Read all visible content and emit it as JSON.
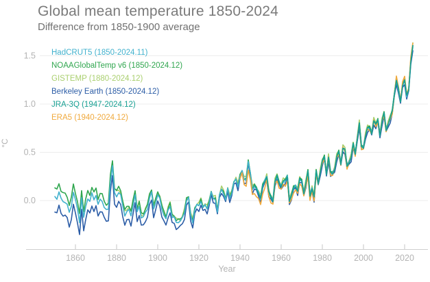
{
  "header": {
    "title": "Global mean temperature 1850-2024",
    "subtitle": "Difference from 1850-1900 average"
  },
  "axes": {
    "ylabel": "°C",
    "xlabel": "Year"
  },
  "style_colors": {
    "gridline": "#ececec",
    "axis_line": "#cfcfcf",
    "tick_mark": "#c4c4c4",
    "tick_label": "#b3b3b3"
  },
  "chart_data": {
    "type": "line",
    "title": "Global mean temperature 1850-2024",
    "subtitle": "Difference from 1850-1900 average",
    "xlabel": "Year",
    "ylabel": "°C",
    "x_range": [
      1850,
      2024
    ],
    "ylim": [
      -0.45,
      1.75
    ],
    "y_ticks": [
      0.0,
      0.5,
      1.0,
      1.5
    ],
    "y_tick_labels": [
      "0.0",
      "0.5",
      "1.0",
      "1.5"
    ],
    "x_ticks": [
      1860,
      1880,
      1900,
      1920,
      1940,
      1960,
      1980,
      2000,
      2020
    ],
    "grid": "horizontal-only",
    "legend_position": "top-left",
    "years_start": 1850,
    "years_end": 2024,
    "base_values": [
      0.05,
      0.02,
      0.08,
      0.02,
      0.0,
      -0.02,
      -0.05,
      -0.12,
      -0.05,
      0.08,
      0.0,
      -0.08,
      -0.22,
      0.02,
      -0.18,
      -0.05,
      0.02,
      -0.02,
      0.08,
      0.02,
      0.05,
      -0.05,
      0.02,
      0.0,
      -0.08,
      -0.1,
      -0.08,
      0.2,
      0.35,
      0.08,
      0.05,
      0.08,
      0.05,
      -0.05,
      -0.15,
      -0.12,
      -0.1,
      -0.15,
      -0.05,
      0.05,
      -0.12,
      -0.05,
      -0.18,
      -0.18,
      -0.12,
      -0.08,
      0.02,
      0.08,
      -0.08,
      -0.02,
      0.05,
      0.02,
      -0.08,
      -0.15,
      -0.2,
      -0.1,
      -0.05,
      -0.18,
      -0.18,
      -0.22,
      -0.22,
      -0.22,
      -0.18,
      -0.12,
      0.0,
      0.02,
      -0.15,
      -0.22,
      -0.1,
      -0.05,
      -0.05,
      0.0,
      -0.08,
      -0.05,
      -0.08,
      -0.02,
      0.08,
      0.02,
      0.02,
      -0.12,
      0.05,
      0.12,
      0.08,
      0.0,
      0.12,
      0.03,
      0.08,
      0.18,
      0.22,
      0.15,
      0.25,
      0.3,
      0.22,
      0.22,
      0.4,
      0.28,
      0.12,
      0.15,
      0.12,
      0.08,
      0.02,
      0.15,
      0.2,
      0.25,
      0.08,
      0.03,
      0.0,
      0.2,
      0.25,
      0.18,
      0.15,
      0.2,
      0.2,
      0.25,
      0.0,
      0.05,
      0.13,
      0.15,
      0.1,
      0.22,
      0.2,
      0.08,
      0.18,
      0.3,
      0.05,
      0.13,
      0.03,
      0.3,
      0.18,
      0.3,
      0.4,
      0.45,
      0.28,
      0.45,
      0.28,
      0.28,
      0.33,
      0.45,
      0.5,
      0.38,
      0.55,
      0.52,
      0.35,
      0.4,
      0.45,
      0.58,
      0.48,
      0.65,
      0.8,
      0.55,
      0.55,
      0.68,
      0.75,
      0.75,
      0.7,
      0.83,
      0.78,
      0.83,
      0.68,
      0.82,
      0.9,
      0.73,
      0.8,
      0.85,
      0.92,
      1.1,
      1.25,
      1.15,
      1.02,
      1.2,
      1.25,
      1.08,
      1.15,
      1.45,
      1.6
    ],
    "series": [
      {
        "name": "hadcrut5",
        "label": "HadCRUT5 (1850-2024.11)",
        "color": "#41b1cd",
        "start_year": 1850,
        "end_year": 2024,
        "offset": 0.0,
        "early_offset": 0.0,
        "early_until": 1920,
        "wiggle_amp": 0.012,
        "wiggle_phase": 0.5,
        "z": 4,
        "adjustments": []
      },
      {
        "name": "noaa",
        "label": "NOAAGlobalTemp v6 (1850-2024.12)",
        "color": "#2fa64e",
        "start_year": 1850,
        "end_year": 2024,
        "offset": 0.01,
        "early_offset": 0.08,
        "early_until": 1920,
        "wiggle_amp": 0.013,
        "wiggle_phase": 2.1,
        "z": 3,
        "adjustments": []
      },
      {
        "name": "gistemp",
        "label": "GISTEMP (1880-2024.12)",
        "color": "#a9cf6e",
        "start_year": 1880,
        "end_year": 2024,
        "offset": 0.02,
        "early_offset": 0.03,
        "early_until": 1920,
        "wiggle_amp": 0.015,
        "wiggle_phase": 4.2,
        "z": 2,
        "adjustments": []
      },
      {
        "name": "berkeley",
        "label": "Berkeley Earth (1850-2024.12)",
        "color": "#2b5ca6",
        "start_year": 1850,
        "end_year": 2024,
        "offset": -0.03,
        "early_offset": -0.12,
        "early_until": 1930,
        "wiggle_amp": 0.02,
        "wiggle_phase": 1.3,
        "z": 1,
        "adjustments": []
      },
      {
        "name": "jra3q",
        "label": "JRA-3Q (1947-2024.12)",
        "color": "#18a093",
        "start_year": 1947,
        "end_year": 2024,
        "offset": 0.0,
        "early_offset": 0.0,
        "early_until": 1920,
        "wiggle_amp": 0.012,
        "wiggle_phase": 3.0,
        "z": 6,
        "adjustments": []
      },
      {
        "name": "era5",
        "label": "ERA5 (1940-2024.12)",
        "color": "#f0a93c",
        "start_year": 1940,
        "end_year": 2024,
        "offset": -0.01,
        "early_offset": 0.0,
        "early_until": 1920,
        "wiggle_amp": 0.015,
        "wiggle_phase": 5.1,
        "z": 5,
        "adjustments": [
          {
            "from": 1942,
            "to": 1952,
            "delta": -0.06
          },
          {
            "from": 1953,
            "to": 1976,
            "delta": -0.03
          },
          {
            "from": 2016,
            "to": 2024,
            "delta": 0.035
          }
        ]
      }
    ]
  }
}
